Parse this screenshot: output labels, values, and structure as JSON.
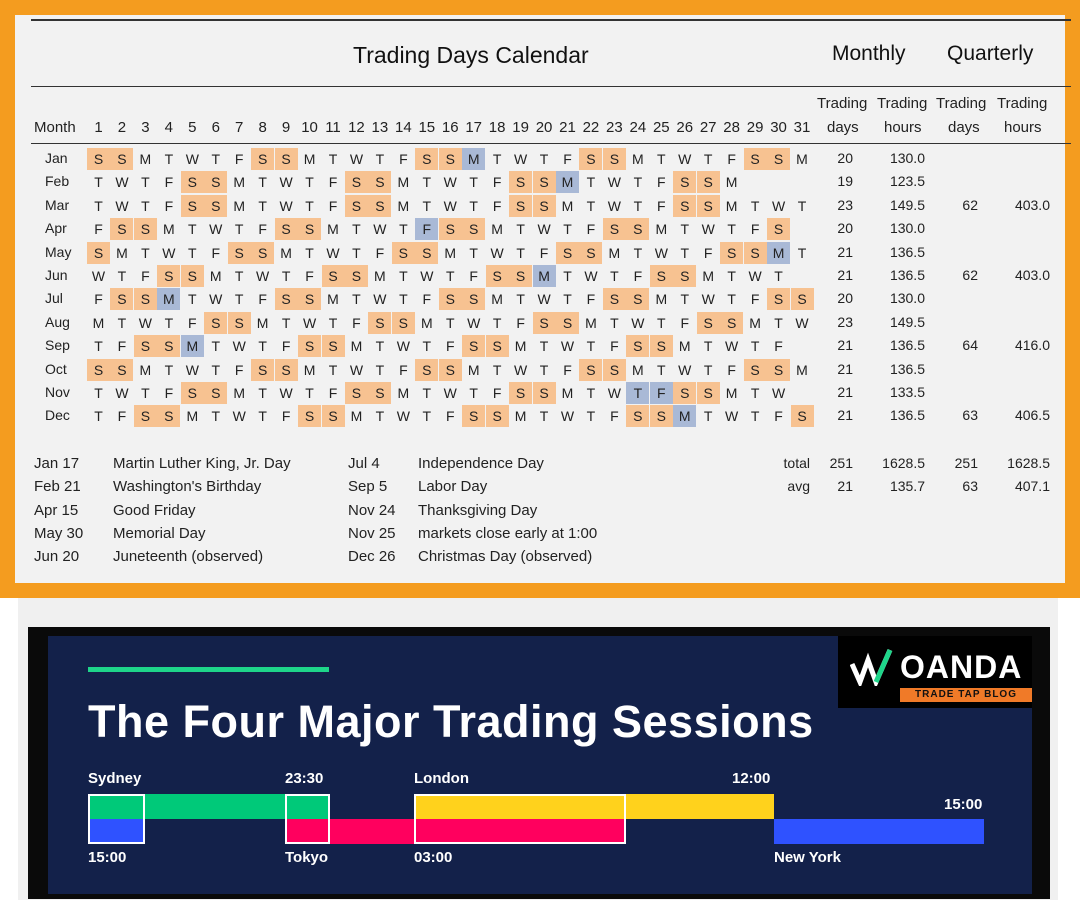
{
  "calendar": {
    "title": "Trading Days Calendar",
    "monthly_header": "Monthly",
    "quarterly_header": "Quarterly",
    "col_month": "Month",
    "trading": "Trading",
    "days": "days",
    "hours": "hours",
    "day_numbers": [
      "1",
      "2",
      "3",
      "4",
      "5",
      "6",
      "7",
      "8",
      "9",
      "10",
      "11",
      "12",
      "13",
      "14",
      "15",
      "16",
      "17",
      "18",
      "19",
      "20",
      "21",
      "22",
      "23",
      "24",
      "25",
      "26",
      "27",
      "28",
      "29",
      "30",
      "31"
    ],
    "colors": {
      "weekend": "#f7c291",
      "holiday": "#a9b9d6",
      "frame": "#f49c1f"
    },
    "months": [
      {
        "name": "Jan",
        "first": 5,
        "days": 31,
        "holidays": [
          17
        ],
        "td": "20",
        "th": "130.0",
        "qd": "",
        "qh": ""
      },
      {
        "name": "Feb",
        "first": 1,
        "days": 28,
        "holidays": [
          21
        ],
        "td": "19",
        "th": "123.5",
        "qd": "",
        "qh": ""
      },
      {
        "name": "Mar",
        "first": 1,
        "days": 31,
        "holidays": [],
        "td": "23",
        "th": "149.5",
        "qd": "62",
        "qh": "403.0"
      },
      {
        "name": "Apr",
        "first": 4,
        "days": 30,
        "holidays": [
          15
        ],
        "td": "20",
        "th": "130.0",
        "qd": "",
        "qh": ""
      },
      {
        "name": "May",
        "first": 6,
        "days": 31,
        "holidays": [
          30
        ],
        "td": "21",
        "th": "136.5",
        "qd": "",
        "qh": ""
      },
      {
        "name": "Jun",
        "first": 2,
        "days": 30,
        "holidays": [
          20
        ],
        "td": "21",
        "th": "136.5",
        "qd": "62",
        "qh": "403.0"
      },
      {
        "name": "Jul",
        "first": 4,
        "days": 31,
        "holidays": [
          4
        ],
        "td": "20",
        "th": "130.0",
        "qd": "",
        "qh": ""
      },
      {
        "name": "Aug",
        "first": 0,
        "days": 31,
        "holidays": [],
        "td": "23",
        "th": "149.5",
        "qd": "",
        "qh": ""
      },
      {
        "name": "Sep",
        "first": 3,
        "days": 30,
        "holidays": [
          5
        ],
        "td": "21",
        "th": "136.5",
        "qd": "64",
        "qh": "416.0"
      },
      {
        "name": "Oct",
        "first": 5,
        "days": 31,
        "holidays": [],
        "td": "21",
        "th": "136.5",
        "qd": "",
        "qh": ""
      },
      {
        "name": "Nov",
        "first": 1,
        "days": 30,
        "holidays": [
          24,
          25
        ],
        "td": "21",
        "th": "133.5",
        "qd": "",
        "qh": ""
      },
      {
        "name": "Dec",
        "first": 3,
        "days": 31,
        "holidays": [
          26
        ],
        "td": "21",
        "th": "136.5",
        "qd": "63",
        "qh": "406.5"
      }
    ],
    "totals": {
      "label": "total",
      "td": "251",
      "th": "1628.5",
      "qd": "251",
      "qh": "1628.5"
    },
    "averages": {
      "label": "avg",
      "td": "21",
      "th": "135.7",
      "qd": "63",
      "qh": "407.1"
    },
    "holidays_left": [
      {
        "date": "Jan 17",
        "name": "Martin Luther King, Jr. Day"
      },
      {
        "date": "Feb 21",
        "name": "Washington's Birthday"
      },
      {
        "date": "Apr 15",
        "name": "Good Friday"
      },
      {
        "date": "May 30",
        "name": "Memorial Day"
      },
      {
        "date": "Jun 20",
        "name": "Juneteenth (observed)"
      }
    ],
    "holidays_right": [
      {
        "date": "Jul 4",
        "name": "Independence Day"
      },
      {
        "date": "Sep 5",
        "name": "Labor Day"
      },
      {
        "date": "Nov 24",
        "name": "Thanksgiving Day"
      },
      {
        "date": "Nov 25",
        "name": "markets close early at 1:00"
      },
      {
        "date": "Dec 26",
        "name": "Christmas Day (observed)"
      }
    ]
  },
  "sessions": {
    "title": "The Four Major Trading Sessions",
    "labels": {
      "sydney": "Sydney",
      "sydney_close": "23:30",
      "london": "London",
      "london_close": "12:00",
      "ny_close": "15:00",
      "sydney_open": "15:00",
      "tokyo": "Tokyo",
      "tokyo_open": "03:00",
      "new_york": "New York"
    },
    "colors": {
      "sydney": "#00c979",
      "london": "#ffd21c",
      "tokyo": "#ff005e",
      "new_york": "#2f52ff",
      "rule": "#1ed58a"
    },
    "brand": {
      "name": "OANDA",
      "tagline": "TRADE TAP BLOG"
    }
  }
}
